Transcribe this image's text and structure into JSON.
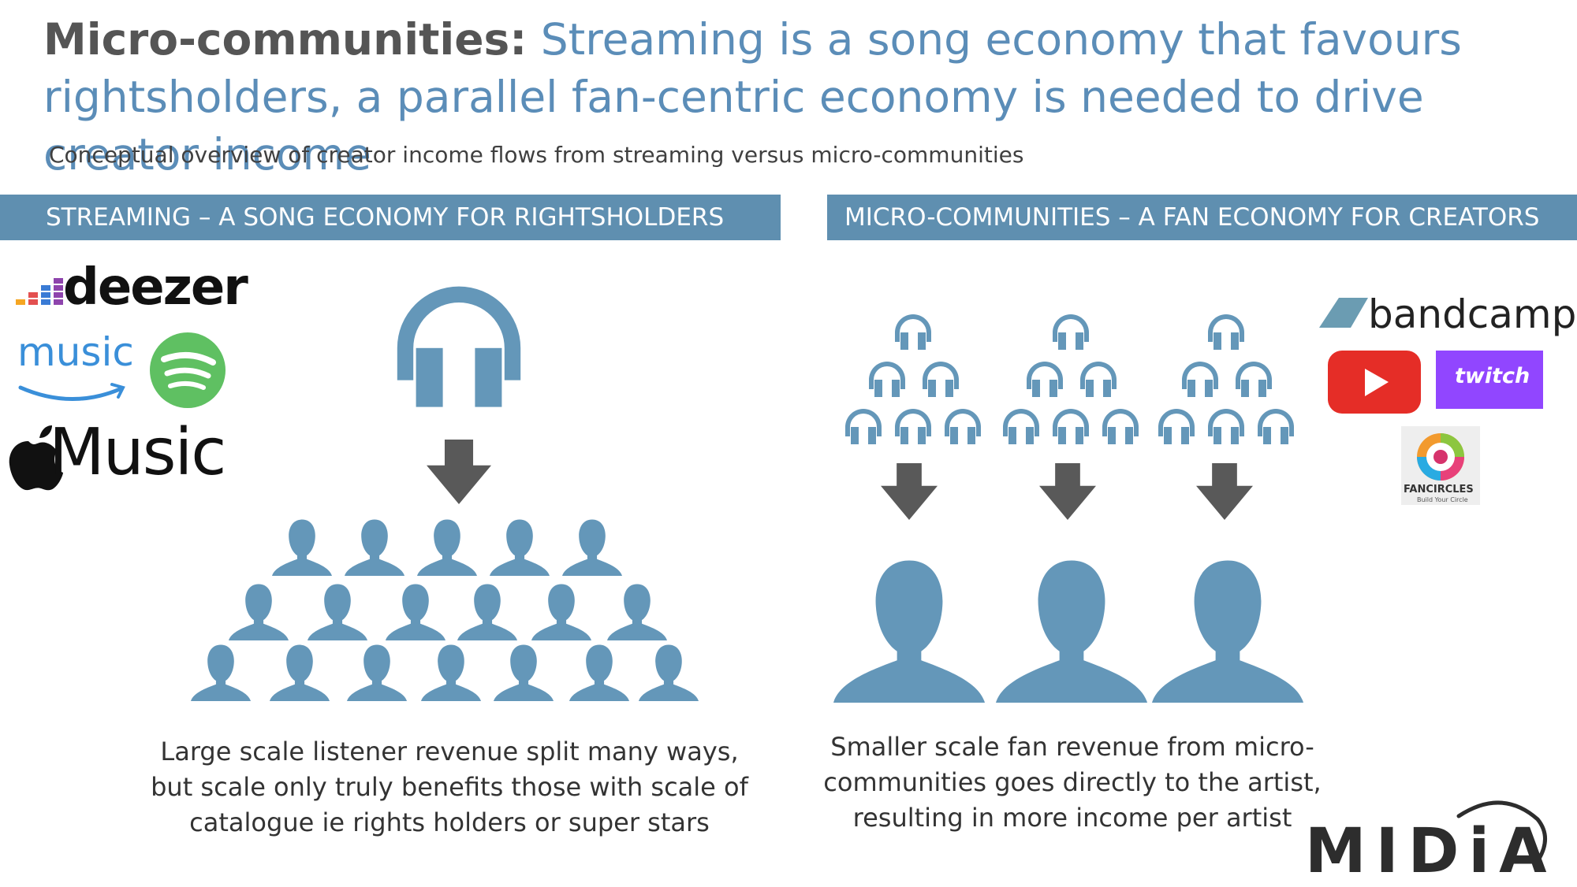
{
  "title": {
    "lead": "Micro-communities:",
    "rest": " Streaming is a song economy that favours rightsholders, a parallel fan-centric economy is needed to drive creator income"
  },
  "subtitle": "Conceptual overview of creator income flows from streaming versus micro-communities",
  "left": {
    "header": "STREAMING – A SONG ECONOMY FOR RIGHTSHOLDERS",
    "caption": "Large scale listener revenue split many ways, but scale only truly benefits those with scale of catalogue ie rights holders or super stars",
    "logos": {
      "deezer": "deezer",
      "amazon_music": "music",
      "apple_music": "Music"
    }
  },
  "right": {
    "header": "MICRO-COMMUNITIES – A FAN ECONOMY FOR CREATORS",
    "caption": "Smaller scale fan revenue from micro-communities goes directly to the artist, resulting in more income per artist",
    "logos": {
      "bandcamp": "bandcamp",
      "twitch": "twitch",
      "fancircles": "FANCIRCLES",
      "fancircles_tagline": "Build Your Circle"
    }
  },
  "brand": "MIDiA",
  "colors": {
    "accent": "#5f8fb0",
    "icon": "#6497b9",
    "arrow": "#595959",
    "title_blue": "#5b8db8",
    "spotify": "#5fc062",
    "youtube": "#e52d27",
    "twitch": "#9146ff"
  }
}
